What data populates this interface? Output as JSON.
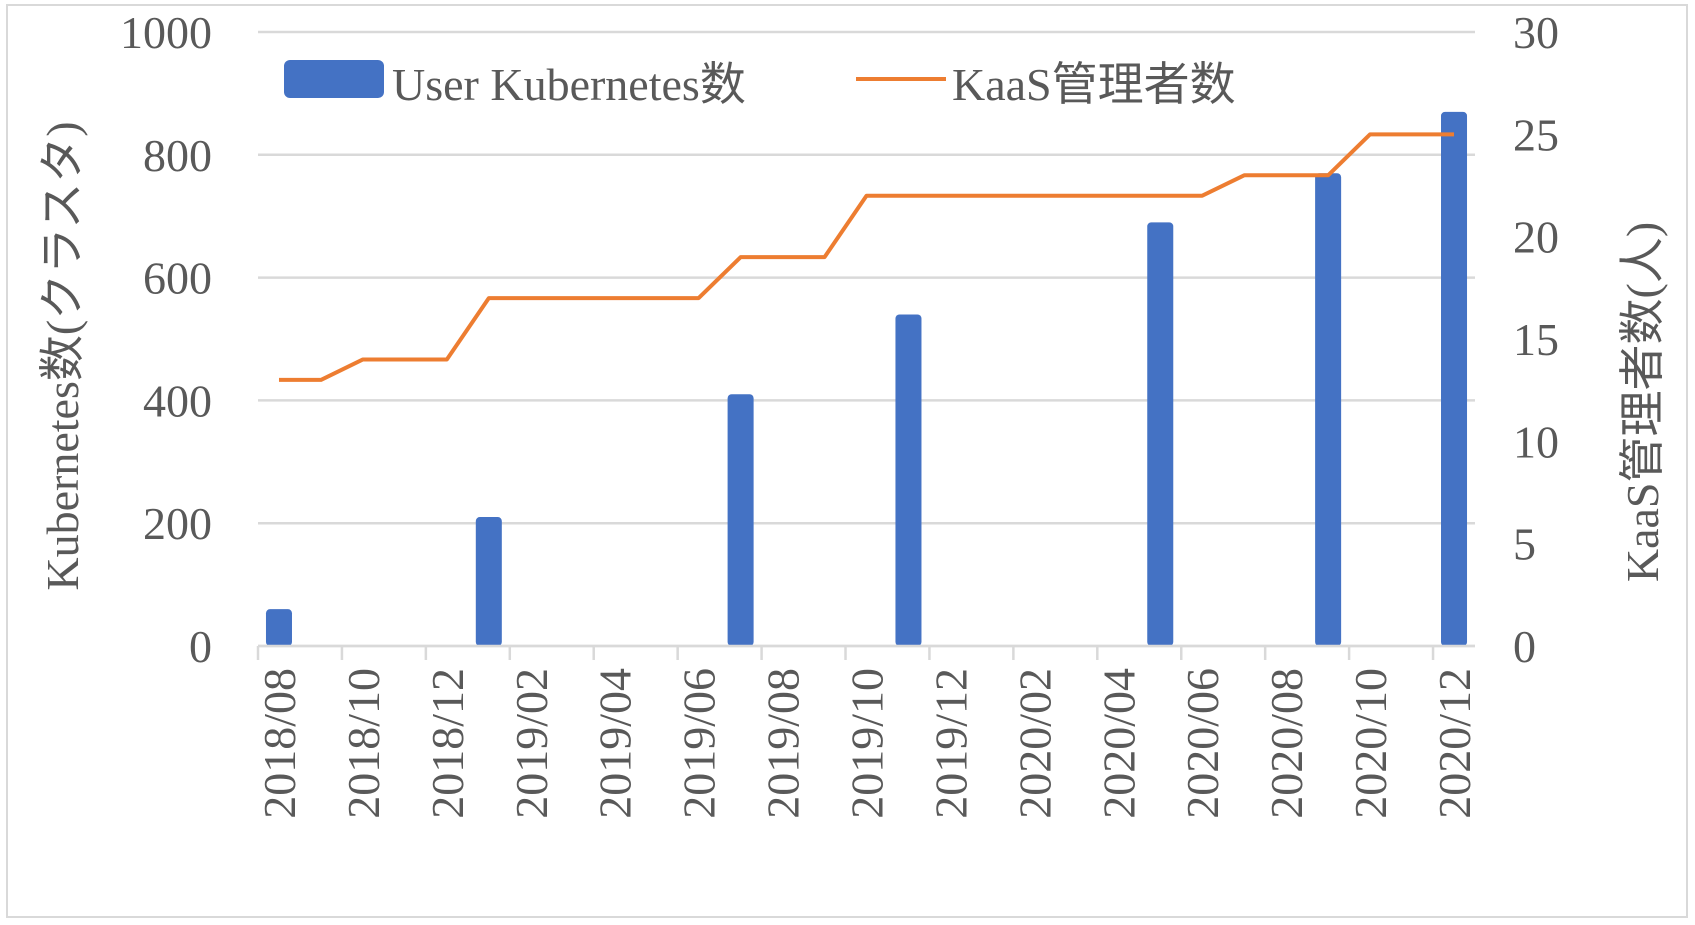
{
  "chart_data": {
    "type": "bar+line",
    "x": [
      "2018/08",
      "2018/09",
      "2018/10",
      "2018/11",
      "2018/12",
      "2019/01",
      "2019/02",
      "2019/03",
      "2019/04",
      "2019/05",
      "2019/06",
      "2019/07",
      "2019/08",
      "2019/09",
      "2019/10",
      "2019/11",
      "2019/12",
      "2020/01",
      "2020/02",
      "2020/03",
      "2020/04",
      "2020/05",
      "2020/06",
      "2020/07",
      "2020/08",
      "2020/09",
      "2020/10",
      "2020/11",
      "2020/12"
    ],
    "x_tick_labels": [
      "2018/08",
      "2018/10",
      "2018/12",
      "2019/02",
      "2019/04",
      "2019/06",
      "2019/08",
      "2019/10",
      "2019/12",
      "2020/02",
      "2020/04",
      "2020/06",
      "2020/08",
      "2020/10",
      "2020/12"
    ],
    "series": [
      {
        "name": "User Kubernetes数",
        "kind": "bar",
        "axis": "left",
        "color": "#4472c4",
        "values": [
          60,
          null,
          null,
          null,
          null,
          210,
          null,
          null,
          null,
          null,
          null,
          410,
          null,
          null,
          null,
          540,
          null,
          null,
          null,
          null,
          null,
          690,
          null,
          null,
          null,
          770,
          null,
          null,
          870
        ]
      },
      {
        "name": "KaaS管理者数",
        "kind": "line",
        "axis": "right",
        "color": "#ed7d31",
        "values": [
          13,
          13,
          14,
          14,
          14,
          17,
          17,
          17,
          17,
          17,
          17,
          19,
          19,
          19,
          22,
          22,
          22,
          22,
          22,
          22,
          22,
          22,
          22,
          23,
          23,
          23,
          25,
          25,
          25
        ]
      }
    ],
    "ylabel_left": "Kubernetes数(クラスタ)",
    "ylabel_right": "KaaS管理者数(人)",
    "ylim_left": [
      0,
      1000
    ],
    "ylim_right": [
      0,
      30
    ],
    "yticks_left": [
      "0",
      "200",
      "400",
      "600",
      "800",
      "1000"
    ],
    "yticks_right": [
      "0",
      "5",
      "10",
      "15",
      "20",
      "25",
      "30"
    ],
    "grid": true,
    "legend_position": "top-left"
  }
}
